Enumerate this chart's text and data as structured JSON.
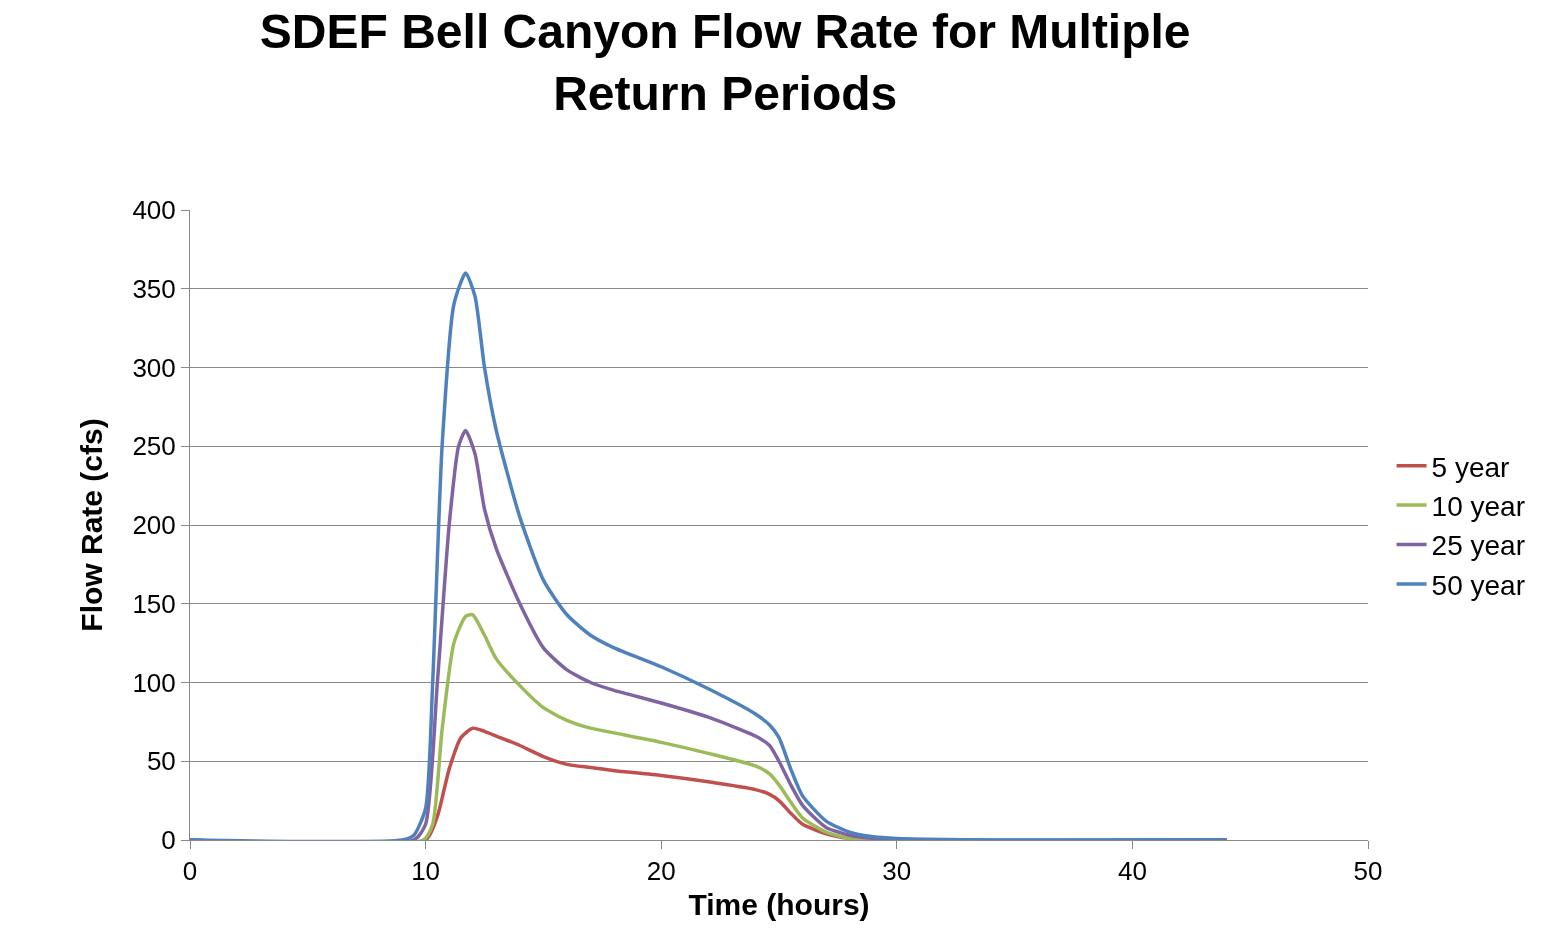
{
  "chart_data": {
    "type": "line",
    "title": "SDEF Bell Canyon Flow Rate for Multiple Return Periods",
    "xlabel": "Time (hours)",
    "ylabel": "Flow Rate (cfs)",
    "xlim": [
      0,
      50
    ],
    "xticks": [
      0,
      10,
      20,
      30,
      40,
      50
    ],
    "ylim": [
      0,
      400
    ],
    "yticks": [
      0,
      50,
      100,
      150,
      200,
      250,
      300,
      350,
      400
    ],
    "grid": "y",
    "legend": "right",
    "marker": "none",
    "line_style": "solid",
    "series": [
      {
        "name": "5 year",
        "color": "#c0504d",
        "x": [
          0,
          10,
          10.5,
          11,
          11.5,
          12,
          12.5,
          13,
          14,
          15,
          16,
          17,
          18,
          20,
          22,
          24,
          24.6,
          25,
          25.5,
          26,
          27,
          28,
          29,
          44
        ],
        "values": [
          0,
          0,
          15,
          45,
          65,
          71,
          69,
          66,
          60,
          53,
          48,
          46,
          44,
          41,
          37,
          32,
          29,
          25,
          17,
          10,
          4,
          1,
          0,
          0
        ]
      },
      {
        "name": "10 year",
        "color": "#9bbb59",
        "x": [
          0,
          9.9,
          10.3,
          10.7,
          11.2,
          11.7,
          12,
          12.5,
          13,
          14,
          15,
          16,
          17,
          18,
          20,
          22,
          24,
          24.6,
          25,
          25.5,
          26,
          27,
          28,
          29,
          44
        ],
        "values": [
          0,
          0,
          10,
          70,
          125,
          142,
          143,
          130,
          115,
          98,
          84,
          76,
          71,
          68,
          62,
          55,
          47,
          42,
          35,
          24,
          14,
          5,
          1,
          0,
          0
        ]
      },
      {
        "name": "25 year",
        "color": "#8064a2",
        "x": [
          0,
          9.5,
          10,
          10.5,
          11,
          11.4,
          11.7,
          12.1,
          12.5,
          13,
          14,
          15,
          16,
          17,
          18,
          20,
          22,
          24,
          24.6,
          25,
          25.5,
          26,
          27,
          28,
          29,
          30,
          44
        ],
        "values": [
          0,
          0,
          10,
          100,
          200,
          250,
          260,
          245,
          210,
          185,
          150,
          122,
          108,
          100,
          95,
          87,
          78,
          66,
          60,
          50,
          35,
          22,
          8,
          3,
          1,
          0,
          0
        ]
      },
      {
        "name": "50 year",
        "color": "#4f81bd",
        "x": [
          0,
          9,
          9.5,
          10,
          10.3,
          10.7,
          11.2,
          11.7,
          12.1,
          12.5,
          13,
          14,
          15,
          16,
          17,
          18,
          20,
          22,
          24,
          24.6,
          25,
          25.5,
          26,
          27,
          28,
          29,
          30,
          35,
          44
        ],
        "values": [
          0,
          0,
          3,
          20,
          100,
          250,
          340,
          360,
          345,
          300,
          260,
          205,
          165,
          143,
          130,
          122,
          110,
          96,
          80,
          73,
          65,
          45,
          28,
          12,
          5,
          2,
          1,
          0,
          0
        ]
      }
    ]
  }
}
